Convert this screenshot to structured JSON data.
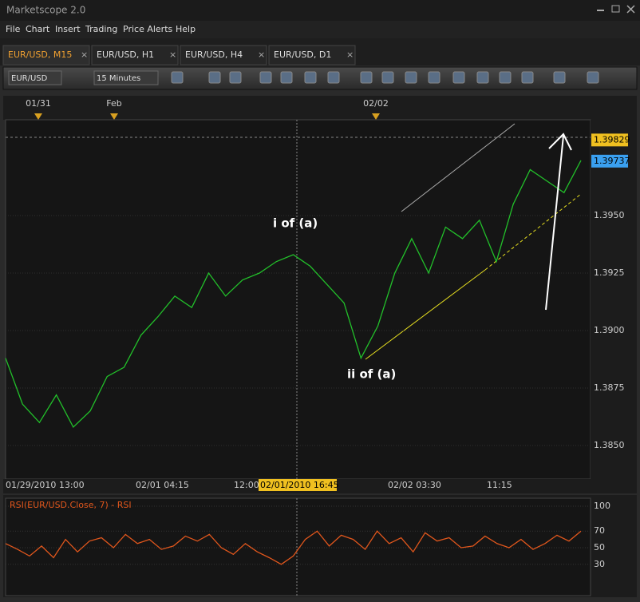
{
  "window": {
    "title": "Marketscope 2.0"
  },
  "menu": [
    "File",
    "Chart",
    "Insert",
    "Trading",
    "Price Alerts",
    "Help"
  ],
  "tabs": [
    "EUR/USD, M15",
    "EUR/USD, H1",
    "EUR/USD, H4",
    "EUR/USD, D1"
  ],
  "toolbar": {
    "symbol": "EUR/USD",
    "period": "15 Minutes"
  },
  "date_strip": [
    "01/31",
    "Feb",
    "02/02"
  ],
  "chart_data": [
    {
      "type": "line",
      "color": "#22c02a",
      "values": [
        1.3888,
        1.3868,
        1.386,
        1.3872,
        1.3858,
        1.3865,
        1.388,
        1.3884,
        1.3898,
        1.3906,
        1.3915,
        1.391,
        1.3925,
        1.3915,
        1.3922,
        1.3925,
        1.393,
        1.3933,
        1.3928,
        1.392,
        1.3912,
        1.3888,
        1.3902,
        1.3925,
        1.394,
        1.3925,
        1.3945,
        1.394,
        1.3948,
        1.393,
        1.3955,
        1.397,
        1.3965,
        1.396,
        1.3974
      ],
      "ylim": [
        1.38354,
        1.39917
      ],
      "yticks": [
        {
          "value": 1.395,
          "label": "1.3950"
        },
        {
          "value": 1.3925,
          "label": "1.3925"
        },
        {
          "value": 1.39,
          "label": "1.3900"
        },
        {
          "value": 1.3875,
          "label": "1.3875"
        },
        {
          "value": 1.385,
          "label": "1.3850"
        }
      ],
      "price_markers": [
        1.39829,
        1.39737
      ],
      "xlabels": [
        "01/29/2010 13:00",
        "02/01 04:15",
        "12:00",
        "02/02 03:30",
        "11:15"
      ],
      "cursor_label": "02/01/2010 16:45",
      "annotations": [
        "i of (a)",
        "ii of (a)"
      ]
    },
    {
      "type": "line",
      "title": "RSI(EUR/USD.Close, 7) - RSI",
      "color": "#e0561c",
      "values": [
        55,
        48,
        40,
        52,
        38,
        60,
        45,
        58,
        62,
        50,
        66,
        55,
        60,
        48,
        52,
        64,
        58,
        66,
        50,
        42,
        55,
        45,
        38,
        30,
        40,
        60,
        70,
        52,
        65,
        60,
        48,
        70,
        55,
        62,
        45,
        68,
        58,
        62,
        50,
        52,
        64,
        55,
        50,
        60,
        48,
        55,
        65,
        58,
        70
      ],
      "ylim": [
        0,
        100
      ],
      "yticks": [
        100,
        70,
        50,
        30
      ]
    }
  ]
}
